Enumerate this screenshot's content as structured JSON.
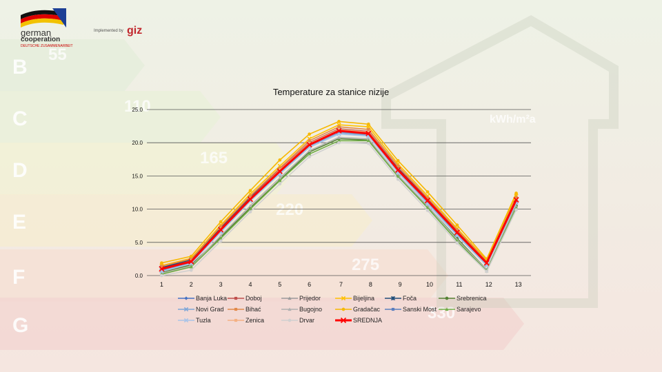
{
  "header": {
    "logo_line1": "german",
    "logo_line2": "cooperation",
    "logo_sub": "DEUTSCHE ZUSAMMENARBEIT",
    "implemented_by": "Implemented by",
    "giz": "giz"
  },
  "background": {
    "bands": [
      {
        "letter": "B",
        "value": "55"
      },
      {
        "letter": "C",
        "value": "110"
      },
      {
        "letter": "D",
        "value": "165"
      },
      {
        "letter": "E",
        "value": "220"
      },
      {
        "letter": "F",
        "value": "275"
      },
      {
        "letter": "G",
        "value": "330"
      }
    ],
    "unit": "kWh/m²a"
  },
  "chart_data": {
    "type": "line",
    "title": "Temperature za stanice nizije",
    "xlabel": "",
    "ylabel": "",
    "x": [
      1,
      2,
      3,
      4,
      5,
      6,
      7,
      8,
      9,
      10,
      11,
      12,
      13
    ],
    "xticks": [
      "1",
      "2",
      "3",
      "4",
      "5",
      "6",
      "7",
      "8",
      "9",
      "10",
      "11",
      "12",
      "13"
    ],
    "ylim": [
      0,
      25
    ],
    "yticks": [
      "0.0",
      "5.0",
      "10.0",
      "15.0",
      "20.0",
      "25.0"
    ],
    "grid": true,
    "legend_position": "bottom",
    "series": [
      {
        "name": "Banja Luka",
        "color": "#4472c4",
        "marker": "diamond",
        "values": [
          1.0,
          2.2,
          7.0,
          11.6,
          15.8,
          19.8,
          21.9,
          21.4,
          16.0,
          11.3,
          6.5,
          1.9,
          11.4
        ]
      },
      {
        "name": "Doboj",
        "color": "#c0504d",
        "marker": "square",
        "values": [
          1.1,
          2.3,
          7.2,
          11.8,
          16.0,
          20.0,
          22.1,
          21.7,
          16.2,
          11.5,
          6.7,
          2.0,
          11.6
        ]
      },
      {
        "name": "Prijedor",
        "color": "#9b9b9b",
        "marker": "triangle",
        "values": [
          0.8,
          2.0,
          6.8,
          11.5,
          15.6,
          19.6,
          21.6,
          21.2,
          15.7,
          11.1,
          6.3,
          1.7,
          11.2
        ]
      },
      {
        "name": "Bijeljina",
        "color": "#ffc000",
        "marker": "x",
        "values": [
          1.5,
          2.6,
          7.6,
          12.3,
          16.5,
          20.6,
          22.7,
          22.4,
          16.8,
          12.0,
          7.1,
          2.3,
          12.0
        ]
      },
      {
        "name": "Foča",
        "color": "#1f4e79",
        "marker": "star",
        "values": [
          1.2,
          2.4,
          7.1,
          11.7,
          15.9,
          19.9,
          22.0,
          21.5,
          16.1,
          11.4,
          6.6,
          2.0,
          11.5
        ]
      },
      {
        "name": "Srebrenica",
        "color": "#548235",
        "marker": "circle",
        "values": [
          0.5,
          1.6,
          5.8,
          10.2,
          14.4,
          18.6,
          20.6,
          20.4,
          15.0,
          10.4,
          5.6,
          0.9,
          10.5
        ]
      },
      {
        "name": "Novi Grad",
        "color": "#7ea6d8",
        "marker": "x",
        "values": [
          0.7,
          1.9,
          6.7,
          11.4,
          15.5,
          19.5,
          21.5,
          21.1,
          15.6,
          11.0,
          6.2,
          1.6,
          11.1
        ]
      },
      {
        "name": "Bihać",
        "color": "#e28a4a",
        "marker": "square",
        "values": [
          1.4,
          2.5,
          7.4,
          12.0,
          16.2,
          20.3,
          22.4,
          22.0,
          16.5,
          11.7,
          6.9,
          2.2,
          11.8
        ]
      },
      {
        "name": "Bugojno",
        "color": "#b0b0b0",
        "marker": "triangle",
        "values": [
          0.3,
          1.4,
          6.0,
          10.5,
          14.7,
          18.8,
          20.8,
          20.6,
          15.1,
          10.5,
          5.4,
          0.9,
          10.4
        ]
      },
      {
        "name": "Gradačac",
        "color": "#f6b800",
        "marker": "circle",
        "values": [
          1.9,
          2.9,
          8.1,
          12.8,
          17.4,
          21.3,
          23.2,
          22.8,
          17.3,
          12.6,
          7.6,
          2.5,
          12.4
        ]
      },
      {
        "name": "Sanski Most",
        "color": "#5b7fbf",
        "marker": "square",
        "values": [
          0.9,
          2.1,
          6.9,
          11.5,
          15.7,
          19.7,
          21.7,
          21.3,
          15.8,
          11.2,
          6.4,
          1.8,
          11.3
        ]
      },
      {
        "name": "Sarajevo",
        "color": "#70ad47",
        "marker": "triangle",
        "values": [
          0.2,
          1.3,
          5.6,
          10.0,
          14.3,
          18.3,
          20.3,
          20.3,
          14.9,
          10.2,
          5.2,
          0.7,
          10.2
        ]
      },
      {
        "name": "Tuzla",
        "color": "#a9c4e8",
        "marker": "x",
        "values": [
          0.6,
          1.8,
          6.5,
          11.2,
          15.3,
          19.3,
          21.3,
          21.0,
          15.5,
          10.8,
          6.0,
          1.5,
          10.9
        ]
      },
      {
        "name": "Zenica",
        "color": "#f4b183",
        "marker": "square",
        "values": [
          1.0,
          2.2,
          7.0,
          11.6,
          15.9,
          19.9,
          22.0,
          21.6,
          16.0,
          11.3,
          6.5,
          1.9,
          11.4
        ]
      },
      {
        "name": "Drvar",
        "color": "#d0d0d0",
        "marker": "circle",
        "values": [
          0.0,
          0.8,
          5.2,
          9.6,
          13.8,
          17.9,
          20.0,
          19.9,
          14.5,
          9.8,
          4.9,
          0.6,
          9.9
        ]
      },
      {
        "name": "SREDNJA",
        "color": "#ff0000",
        "marker": "x",
        "values": [
          1.0,
          2.1,
          6.9,
          11.5,
          15.7,
          19.7,
          21.8,
          21.4,
          15.9,
          11.3,
          6.5,
          1.9,
          11.4
        ]
      }
    ]
  }
}
